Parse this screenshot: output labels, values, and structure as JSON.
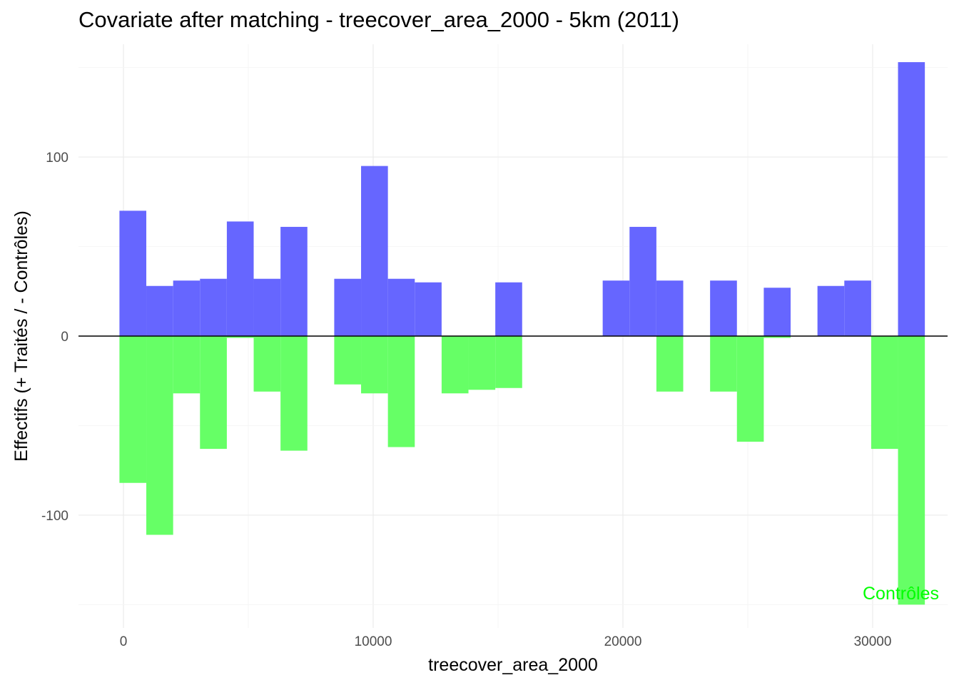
{
  "chart_data": {
    "type": "bar",
    "title": "Covariate after matching - treecover_area_2000 - 5km (2011)",
    "xlabel": "treecover_area_2000",
    "ylabel": "Effectifs (+ Traités / - Contrôles)",
    "annotation": "Contrôles",
    "xlim": [
      -1800,
      33000
    ],
    "ylim": [
      -163,
      163
    ],
    "x_ticks": [
      0,
      10000,
      20000,
      30000
    ],
    "y_ticks": [
      -100,
      0,
      100
    ],
    "bin_width": 1075,
    "bin_start": -160,
    "grid": true,
    "colors": {
      "treated": "#6666ff",
      "control": "#66ff66",
      "annotation": "#00ff00"
    },
    "series": [
      {
        "name": "Traités",
        "values": [
          70,
          28,
          31,
          32,
          64,
          32,
          61,
          0,
          32,
          95,
          32,
          30,
          0,
          0,
          30,
          0,
          0,
          0,
          31,
          61,
          31,
          0,
          31,
          0,
          27,
          0,
          28,
          31,
          0,
          153
        ]
      },
      {
        "name": "Contrôles",
        "values": [
          -82,
          -111,
          -32,
          -63,
          -1,
          -31,
          -64,
          0,
          -27,
          -32,
          -62,
          0,
          -32,
          -30,
          -29,
          0,
          0,
          0,
          0,
          0,
          -31,
          0,
          -31,
          -59,
          -1,
          0,
          0,
          0,
          -63,
          -150
        ]
      }
    ]
  }
}
